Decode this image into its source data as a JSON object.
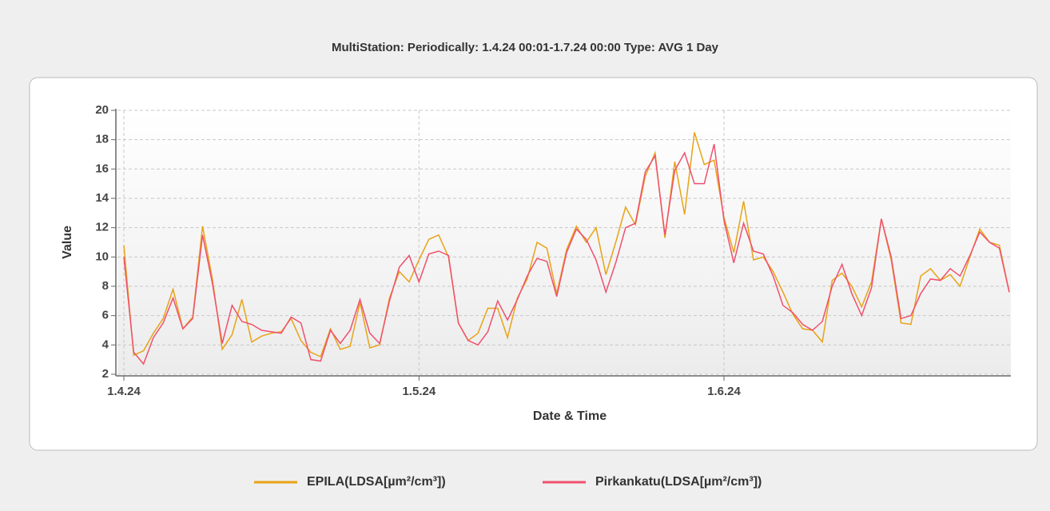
{
  "chart_data": {
    "type": "line",
    "title": "MultiStation:  Periodically: 1.4.24 00:01-1.7.24 00:00  Type: AVG 1 Day",
    "xlabel": "Date & Time",
    "ylabel": "Value",
    "x": [
      0,
      1,
      2,
      3,
      4,
      5,
      6,
      7,
      8,
      9,
      10,
      11,
      12,
      13,
      14,
      15,
      16,
      17,
      18,
      19,
      20,
      21,
      22,
      23,
      24,
      25,
      26,
      27,
      28,
      29,
      30,
      31,
      32,
      33,
      34,
      35,
      36,
      37,
      38,
      39,
      40,
      41,
      42,
      43,
      44,
      45,
      46,
      47,
      48,
      49,
      50,
      51,
      52,
      53,
      54,
      55,
      56,
      57,
      58,
      59,
      60,
      61,
      62,
      63,
      64,
      65,
      66,
      67,
      68,
      69,
      70,
      71,
      72,
      73,
      74,
      75,
      76,
      77,
      78,
      79,
      80,
      81,
      82,
      83,
      84,
      85,
      86,
      87,
      88,
      89,
      90
    ],
    "series": [
      {
        "name": "EPILA(LDSA[µm²/cm³])",
        "color": "#e8a317",
        "values": [
          10.8,
          3.3,
          3.6,
          4.8,
          5.8,
          7.8,
          5.1,
          5.9,
          12.1,
          8.5,
          3.7,
          4.7,
          7.1,
          4.2,
          4.6,
          4.8,
          4.9,
          5.8,
          4.3,
          3.5,
          3.2,
          5.1,
          3.7,
          3.9,
          6.9,
          3.8,
          4.0,
          7.2,
          9.0,
          8.3,
          9.8,
          11.2,
          11.5,
          10.0,
          5.5,
          4.3,
          4.8,
          6.5,
          6.5,
          4.5,
          7.2,
          8.5,
          11.0,
          10.6,
          7.5,
          10.5,
          12.1,
          11.0,
          12.0,
          8.8,
          11.0,
          13.4,
          12.2,
          15.5,
          17.1,
          11.3,
          16.5,
          12.9,
          18.5,
          16.3,
          16.6,
          12.7,
          10.3,
          13.8,
          9.8,
          10.0,
          9.0,
          7.6,
          6.1,
          5.1,
          5.0,
          4.2,
          8.4,
          8.9,
          8.0,
          6.6,
          8.3,
          12.6,
          9.8,
          5.5,
          5.4,
          8.7,
          9.2,
          8.4,
          8.8,
          8.0,
          10.0,
          11.9,
          11.0,
          10.8,
          7.6
        ]
      },
      {
        "name": "Pirkankatu(LDSA[µm²/cm³])",
        "color": "#f0506e",
        "values": [
          10.0,
          3.5,
          2.7,
          4.5,
          5.5,
          7.2,
          5.1,
          5.8,
          11.5,
          8.2,
          4.1,
          6.7,
          5.6,
          5.4,
          5.0,
          4.9,
          4.8,
          5.9,
          5.5,
          3.0,
          2.9,
          5.0,
          4.1,
          5.0,
          7.1,
          4.8,
          4.1,
          7.0,
          9.3,
          10.1,
          8.3,
          10.2,
          10.4,
          10.1,
          5.5,
          4.3,
          4.0,
          4.9,
          7.0,
          5.7,
          7.1,
          8.7,
          9.9,
          9.7,
          7.3,
          10.3,
          11.9,
          11.2,
          9.8,
          7.6,
          9.6,
          12.0,
          12.3,
          15.8,
          16.9,
          11.5,
          15.9,
          17.1,
          15.0,
          15.0,
          17.7,
          12.5,
          9.6,
          12.3,
          10.4,
          10.2,
          8.7,
          6.7,
          6.2,
          5.4,
          5.0,
          5.6,
          8.0,
          9.5,
          7.5,
          6.0,
          7.9,
          12.6,
          10.0,
          5.8,
          6.0,
          7.5,
          8.5,
          8.4,
          9.2,
          8.7,
          10.1,
          11.7,
          11.0,
          10.6,
          7.6
        ]
      }
    ],
    "xlim": [
      0,
      90
    ],
    "xticks": [
      {
        "value": 0,
        "label": "1.4.24"
      },
      {
        "value": 30,
        "label": "1.5.24"
      },
      {
        "value": 61,
        "label": "1.6.24"
      }
    ],
    "ylim": [
      2,
      20
    ],
    "yticks": [
      2,
      4,
      6,
      8,
      10,
      12,
      14,
      16,
      18,
      20
    ],
    "grid": true
  }
}
